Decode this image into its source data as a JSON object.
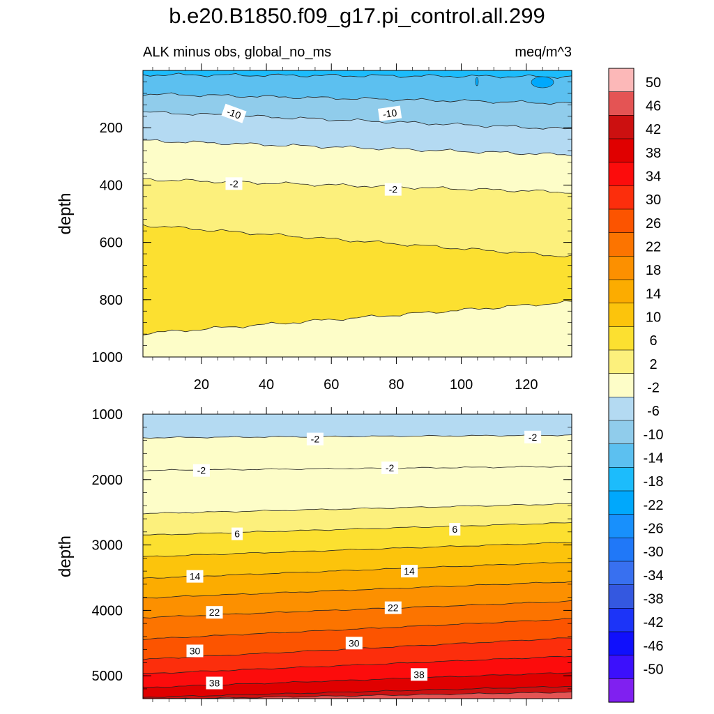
{
  "title": "b.e20.B1850.f09_g17.pi_control.all.299",
  "chart_data": {
    "type": "contour",
    "variable_label": "ALK minus obs, global_no_ms",
    "units_label": "meq/m^3",
    "x_axis": {
      "ticks": [
        20,
        40,
        60,
        80,
        100,
        120
      ],
      "range": [
        2,
        134
      ]
    },
    "panels": [
      {
        "name": "upper",
        "ylabel": "depth",
        "ylim": [
          0,
          1000
        ],
        "yticks": [
          200,
          400,
          600,
          800,
          1000
        ],
        "contour_lines": [
          {
            "level": -14,
            "depth_start": 15,
            "depth_end": 22
          },
          {
            "level": -10,
            "depth_start": 82,
            "depth_end": 115
          },
          {
            "level": -6,
            "depth_start": 145,
            "depth_end": 205
          },
          {
            "level": -2,
            "depth_start": 245,
            "depth_end": 295
          },
          {
            "level": 2,
            "depth_start": 380,
            "depth_end": 425
          },
          {
            "level": 6,
            "depth_start": 540,
            "depth_end": 650
          },
          {
            "level": 2,
            "depth_start": 918,
            "depth_end": 808
          }
        ],
        "labels": [
          {
            "text": "-10",
            "x": 30,
            "depth": 150
          },
          {
            "text": "-10",
            "x": 78,
            "depth": 150
          },
          {
            "text": "-2",
            "x": 30,
            "depth": 395
          },
          {
            "text": "-2",
            "x": 79,
            "depth": 415
          }
        ]
      },
      {
        "name": "lower",
        "ylabel": "depth",
        "ylim": [
          1000,
          5350
        ],
        "yticks": [
          1000,
          2000,
          3000,
          4000,
          5000
        ],
        "contour_lines": [
          {
            "level": -2,
            "depth_start": 1360,
            "depth_end": 1320
          },
          {
            "level": -2,
            "depth_start": 1860,
            "depth_end": 1800
          },
          {
            "level": 2,
            "depth_start": 2520,
            "depth_end": 2370
          },
          {
            "level": 6,
            "depth_start": 2850,
            "depth_end": 2660
          },
          {
            "level": 10,
            "depth_start": 3180,
            "depth_end": 2960
          },
          {
            "level": 14,
            "depth_start": 3510,
            "depth_end": 3260
          },
          {
            "level": 18,
            "depth_start": 3810,
            "depth_end": 3560
          },
          {
            "level": 22,
            "depth_start": 4110,
            "depth_end": 3860
          },
          {
            "level": 26,
            "depth_start": 4440,
            "depth_end": 4130
          },
          {
            "level": 30,
            "depth_start": 4750,
            "depth_end": 4420
          },
          {
            "level": 34,
            "depth_start": 4970,
            "depth_end": 4700
          },
          {
            "level": 38,
            "depth_start": 5180,
            "depth_end": 4950
          },
          {
            "level": 42,
            "depth_start": 5330,
            "depth_end": 5160
          },
          {
            "level": 46,
            "depth_start": 5360,
            "depth_end": 5250
          }
        ],
        "labels": [
          {
            "text": "-2",
            "x": 55,
            "depth": 1380
          },
          {
            "text": "-2",
            "x": 122,
            "depth": 1350
          },
          {
            "text": "-2",
            "x": 20,
            "depth": 1860
          },
          {
            "text": "-2",
            "x": 78,
            "depth": 1820
          },
          {
            "text": "6",
            "x": 31,
            "depth": 2830
          },
          {
            "text": "6",
            "x": 98,
            "depth": 2760
          },
          {
            "text": "14",
            "x": 18,
            "depth": 3480
          },
          {
            "text": "14",
            "x": 84,
            "depth": 3400
          },
          {
            "text": "22",
            "x": 24,
            "depth": 4030
          },
          {
            "text": "22",
            "x": 79,
            "depth": 3960
          },
          {
            "text": "30",
            "x": 18,
            "depth": 4620
          },
          {
            "text": "30",
            "x": 67,
            "depth": 4500
          },
          {
            "text": "38",
            "x": 24,
            "depth": 5110
          },
          {
            "text": "38",
            "x": 87,
            "depth": 4980
          }
        ]
      }
    ],
    "colorbar": {
      "labels": [
        "50",
        "46",
        "42",
        "38",
        "34",
        "30",
        "26",
        "22",
        "18",
        "14",
        "10",
        "6",
        "2",
        "-2",
        "-6",
        "-10",
        "-14",
        "-18",
        "-22",
        "-26",
        "-30",
        "-34",
        "-38",
        "-42",
        "-46",
        "-50"
      ],
      "colors": [
        "#fcb8b8",
        "#e45454",
        "#cc1010",
        "#e00000",
        "#fc0c0c",
        "#fc2e0c",
        "#fc5400",
        "#fc7400",
        "#fc9000",
        "#fcac00",
        "#fcc40c",
        "#fce030",
        "#fcf07c",
        "#fdfdc8",
        "#b4daf2",
        "#90cceb",
        "#5cc0f0",
        "#1cbcfc",
        "#00a8fc",
        "#1890fc",
        "#2078f8",
        "#3870f0",
        "#3458e0",
        "#1c34f8",
        "#1010fc",
        "#3c10fc",
        "#8020f0"
      ]
    }
  }
}
